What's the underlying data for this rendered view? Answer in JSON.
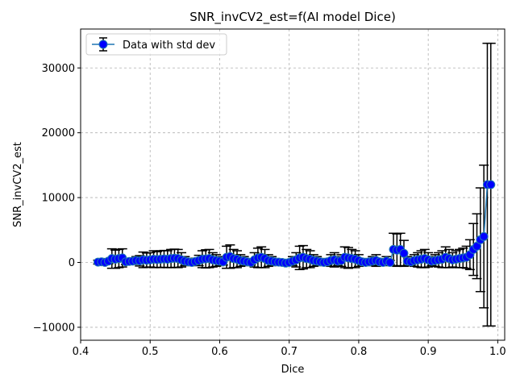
{
  "chart_data": {
    "type": "scatter",
    "title": "SNR_invCV2_est=f(AI model Dice)",
    "xlabel": "Dice",
    "ylabel": "SNR_invCV2_est",
    "xlim": [
      0.4,
      1.01
    ],
    "ylim": [
      -12000,
      36000
    ],
    "xticks": [
      0.4,
      0.5,
      0.6,
      0.7,
      0.8,
      0.9,
      1.0
    ],
    "xtick_labels": [
      "0.4",
      "0.5",
      "0.6",
      "0.7",
      "0.8",
      "0.9",
      "1.0"
    ],
    "yticks": [
      -10000,
      0,
      10000,
      20000,
      30000
    ],
    "ytick_labels": [
      "−10000",
      "0",
      "10000",
      "20000",
      "30000"
    ],
    "grid": true,
    "legend_position": "top-left",
    "legend": [
      "Data with std dev"
    ],
    "colors": {
      "marker_face": "#0000ff",
      "marker_edge": "#1f77b4",
      "line": "#1f77b4",
      "errorbar": "#000000",
      "grid": "#b0b0b0"
    },
    "series": [
      {
        "name": "Data with std dev",
        "x": [
          0.425,
          0.43,
          0.435,
          0.44,
          0.445,
          0.45,
          0.455,
          0.46,
          0.465,
          0.47,
          0.475,
          0.48,
          0.485,
          0.49,
          0.495,
          0.5,
          0.505,
          0.51,
          0.515,
          0.52,
          0.525,
          0.53,
          0.535,
          0.54,
          0.545,
          0.55,
          0.555,
          0.56,
          0.565,
          0.57,
          0.575,
          0.58,
          0.585,
          0.59,
          0.595,
          0.6,
          0.605,
          0.61,
          0.615,
          0.62,
          0.625,
          0.63,
          0.635,
          0.64,
          0.645,
          0.65,
          0.655,
          0.66,
          0.665,
          0.67,
          0.675,
          0.68,
          0.685,
          0.69,
          0.695,
          0.7,
          0.705,
          0.71,
          0.715,
          0.72,
          0.725,
          0.73,
          0.735,
          0.74,
          0.745,
          0.75,
          0.755,
          0.76,
          0.765,
          0.77,
          0.775,
          0.78,
          0.785,
          0.79,
          0.795,
          0.8,
          0.805,
          0.81,
          0.815,
          0.82,
          0.825,
          0.83,
          0.835,
          0.84,
          0.845,
          0.85,
          0.855,
          0.86,
          0.865,
          0.87,
          0.875,
          0.88,
          0.885,
          0.89,
          0.895,
          0.9,
          0.905,
          0.91,
          0.915,
          0.92,
          0.925,
          0.93,
          0.935,
          0.94,
          0.945,
          0.95,
          0.955,
          0.96,
          0.965,
          0.97,
          0.975,
          0.98,
          0.985,
          0.99
        ],
        "y": [
          50,
          100,
          0,
          200,
          600,
          500,
          600,
          700,
          100,
          150,
          200,
          300,
          250,
          400,
          350,
          400,
          500,
          450,
          500,
          550,
          500,
          600,
          650,
          600,
          400,
          200,
          100,
          0,
          150,
          300,
          500,
          550,
          600,
          400,
          300,
          200,
          100,
          800,
          900,
          600,
          500,
          300,
          200,
          100,
          0,
          400,
          700,
          800,
          600,
          300,
          200,
          100,
          50,
          0,
          -100,
          0,
          200,
          400,
          700,
          800,
          600,
          500,
          300,
          200,
          100,
          0,
          100,
          300,
          400,
          200,
          300,
          800,
          700,
          600,
          500,
          300,
          100,
          0,
          100,
          200,
          300,
          100,
          0,
          200,
          0,
          2000,
          1900,
          2000,
          1400,
          200,
          100,
          300,
          400,
          500,
          600,
          400,
          200,
          300,
          400,
          500,
          800,
          600,
          400,
          500,
          600,
          700,
          800,
          1200,
          2000,
          2500,
          3500,
          4000,
          12000,
          12000
        ],
        "yerr": [
          300,
          300,
          300,
          400,
          1500,
          1400,
          1400,
          1400,
          400,
          400,
          500,
          600,
          800,
          1200,
          1100,
          1100,
          1300,
          1200,
          1300,
          1300,
          1300,
          1400,
          1400,
          1400,
          1100,
          700,
          500,
          400,
          500,
          800,
          1300,
          1400,
          1400,
          1100,
          900,
          700,
          500,
          1700,
          1800,
          1400,
          1300,
          900,
          700,
          500,
          400,
          1100,
          1500,
          1600,
          1400,
          900,
          700,
          500,
          400,
          300,
          300,
          300,
          700,
          1100,
          1800,
          1800,
          1400,
          1300,
          900,
          700,
          500,
          400,
          500,
          900,
          1100,
          700,
          900,
          1600,
          1600,
          1400,
          1300,
          900,
          500,
          300,
          500,
          700,
          900,
          500,
          300,
          700,
          300,
          2500,
          2500,
          2500,
          2000,
          700,
          500,
          900,
          1100,
          1300,
          1400,
          1100,
          700,
          900,
          1100,
          1300,
          1600,
          1400,
          1100,
          1300,
          1400,
          1500,
          1700,
          2300,
          4000,
          5000,
          8000,
          11000,
          21800,
          21800
        ]
      }
    ]
  }
}
